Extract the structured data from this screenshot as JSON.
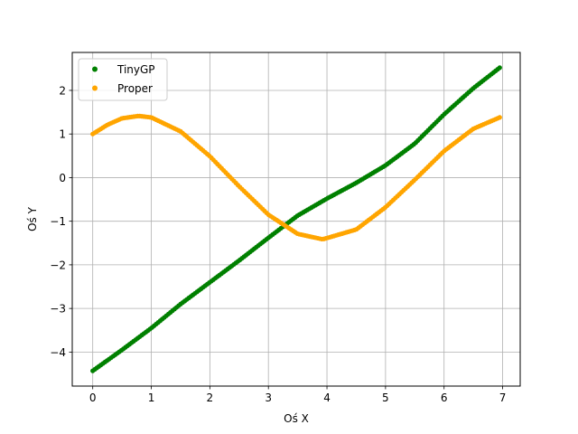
{
  "chart_data": {
    "type": "scatter",
    "xlabel": "Oś X",
    "ylabel": "Oś Y",
    "xlim": [
      -0.35,
      7.3
    ],
    "ylim": [
      -4.78,
      2.87
    ],
    "xticks": [
      0,
      1,
      2,
      3,
      4,
      5,
      6,
      7
    ],
    "yticks": [
      -4,
      -3,
      -2,
      -1,
      0,
      1,
      2
    ],
    "grid": true,
    "legend_position": "top-left",
    "series": [
      {
        "name": "TinyGP",
        "color": "#008000",
        "x": [
          0.0,
          0.5,
          1.0,
          1.5,
          2.0,
          2.5,
          3.0,
          3.5,
          4.0,
          4.5,
          5.0,
          5.5,
          6.0,
          6.5,
          6.95
        ],
        "y": [
          -4.43,
          -3.95,
          -3.45,
          -2.9,
          -2.4,
          -1.9,
          -1.38,
          -0.87,
          -0.48,
          -0.12,
          0.28,
          0.78,
          1.45,
          2.05,
          2.52
        ]
      },
      {
        "name": "Proper",
        "color": "#ffa500",
        "x": [
          0.0,
          0.25,
          0.5,
          0.785,
          1.0,
          1.5,
          2.0,
          2.5,
          3.0,
          3.5,
          3.927,
          4.5,
          5.0,
          5.5,
          6.0,
          6.5,
          6.95
        ],
        "y": [
          1.0,
          1.21,
          1.36,
          1.414,
          1.38,
          1.06,
          0.49,
          -0.2,
          -0.85,
          -1.29,
          -1.414,
          -1.19,
          -0.68,
          -0.05,
          0.61,
          1.12,
          1.38
        ]
      }
    ]
  }
}
